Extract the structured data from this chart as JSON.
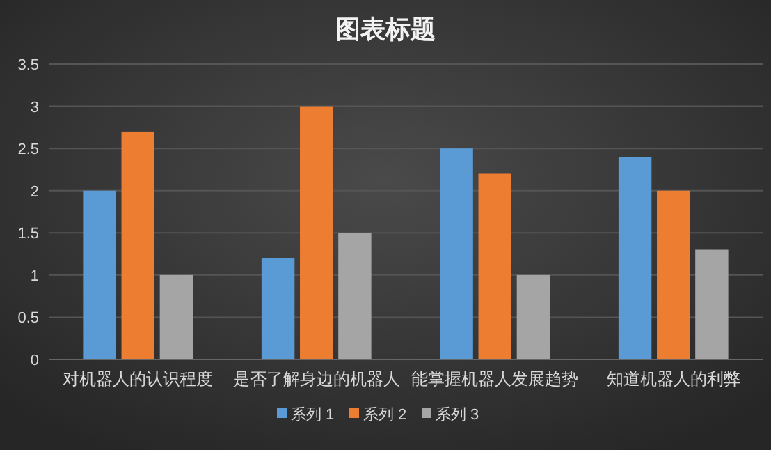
{
  "chart_data": {
    "type": "bar",
    "title": "图表标题",
    "categories": [
      "对机器人的认识程度",
      "是否了解身边的机器人",
      "能掌握机器人发展趋势",
      "知道机器人的利弊"
    ],
    "series": [
      {
        "name": "系列 1",
        "color": "#5b9bd5",
        "values": [
          2,
          1.2,
          2.5,
          2.4
        ]
      },
      {
        "name": "系列 2",
        "color": "#ed7d31",
        "values": [
          2.7,
          3,
          2.2,
          2
        ]
      },
      {
        "name": "系列 3",
        "color": "#a5a5a5",
        "values": [
          1,
          1.5,
          1,
          1.3
        ]
      }
    ],
    "ylim": [
      0,
      3.5
    ],
    "yticks": [
      0,
      0.5,
      1,
      1.5,
      2,
      2.5,
      3,
      3.5
    ],
    "grid": "y",
    "legend": "bottom"
  }
}
